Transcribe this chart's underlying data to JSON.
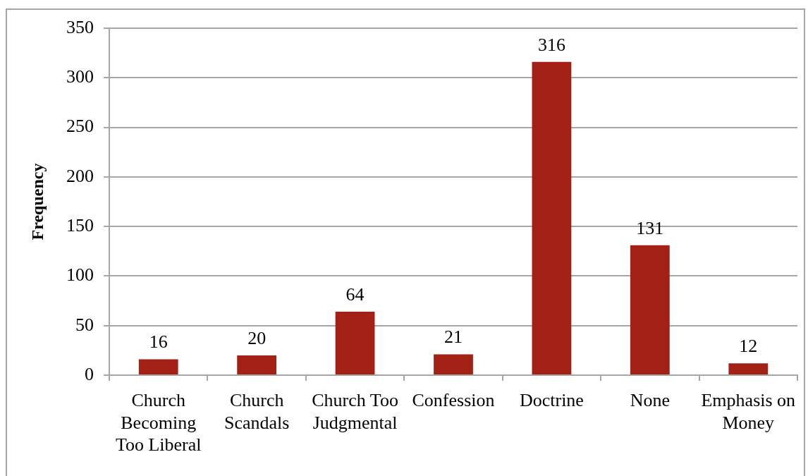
{
  "chart_data": {
    "type": "bar",
    "ylabel": "Frequency",
    "categories": [
      "Church Becoming Too Liberal",
      "Church Scandals",
      "Church Too Judgmental",
      "Confession",
      "Doctrine",
      "None",
      "Emphasis on Money"
    ],
    "values": [
      16,
      20,
      64,
      21,
      316,
      131,
      12
    ],
    "color": "#a32014",
    "ylim": [
      0,
      350
    ],
    "yticks": [
      0,
      50,
      100,
      150,
      200,
      250,
      300,
      350
    ],
    "grid": "y",
    "data_labels": true
  }
}
